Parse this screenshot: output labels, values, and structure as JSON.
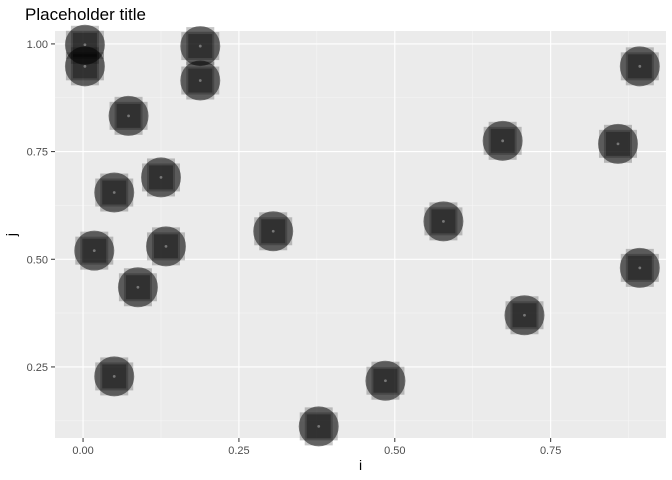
{
  "chart_data": {
    "type": "scatter",
    "title": "Placeholder title",
    "xlabel": "i",
    "ylabel": "j",
    "xlim": [
      -0.045,
      0.935
    ],
    "ylim": [
      0.085,
      1.03
    ],
    "x_ticks": [
      0.0,
      0.25,
      0.5,
      0.75
    ],
    "x_tick_labels": [
      "0.00",
      "0.25",
      "0.50",
      "0.75"
    ],
    "y_ticks": [
      0.25,
      0.5,
      0.75,
      1.0
    ],
    "y_tick_labels": [
      "0.25",
      "0.50",
      "0.75",
      "1.00"
    ],
    "grid": true,
    "legend": "none",
    "colors": {
      "panel_background": "#ebebeb",
      "grid_major": "#ffffff",
      "grid_minor": "#f5f5f5",
      "point_fill": "#000000",
      "tick_text": "#4d4d4d",
      "tick_mark": "#333333"
    },
    "points": [
      {
        "x": 0.003,
        "y": 0.998
      },
      {
        "x": 0.003,
        "y": 0.948
      },
      {
        "x": 0.188,
        "y": 0.995
      },
      {
        "x": 0.188,
        "y": 0.915
      },
      {
        "x": 0.073,
        "y": 0.833
      },
      {
        "x": 0.125,
        "y": 0.69
      },
      {
        "x": 0.05,
        "y": 0.655
      },
      {
        "x": 0.018,
        "y": 0.52
      },
      {
        "x": 0.133,
        "y": 0.53
      },
      {
        "x": 0.088,
        "y": 0.435
      },
      {
        "x": 0.05,
        "y": 0.228
      },
      {
        "x": 0.305,
        "y": 0.565
      },
      {
        "x": 0.378,
        "y": 0.112
      },
      {
        "x": 0.485,
        "y": 0.218
      },
      {
        "x": 0.578,
        "y": 0.588
      },
      {
        "x": 0.673,
        "y": 0.775
      },
      {
        "x": 0.708,
        "y": 0.37
      },
      {
        "x": 0.858,
        "y": 0.768
      },
      {
        "x": 0.893,
        "y": 0.948
      },
      {
        "x": 0.893,
        "y": 0.48
      }
    ]
  }
}
